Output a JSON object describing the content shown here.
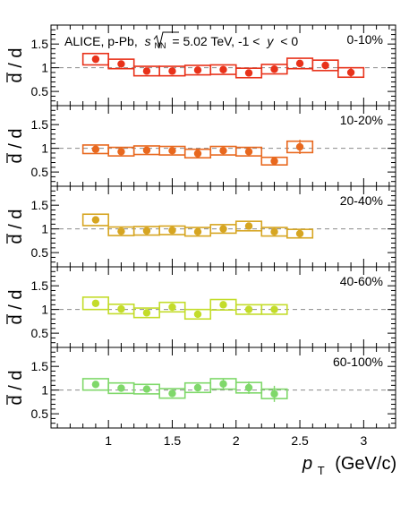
{
  "chart_data": {
    "type": "scatter",
    "title_label": {
      "experiment": "ALICE, p-Pb,",
      "sqrt": "s",
      "sub": "NN",
      "energy": "= 5.02 TeV, -1 <",
      "y_var": "y",
      "y_range": "< 0"
    },
    "xlabel": {
      "var": "p",
      "sub": "T",
      "unit": "(GeV/c)"
    },
    "ylabel": "d / d",
    "xlim": [
      0.55,
      3.25
    ],
    "ylim": [
      0.2,
      1.9
    ],
    "x_ticks": [
      1,
      1.5,
      2,
      2.5,
      3
    ],
    "x_tick_labels": [
      "1",
      "1.5",
      "2",
      "2.5",
      "3"
    ],
    "y_ticks": [
      0.5,
      1,
      1.5
    ],
    "y_tick_labels": [
      "0.5",
      "1",
      "1.5"
    ],
    "reference_line": 1,
    "panels": [
      {
        "label": "0-10%",
        "color": "#e8321a",
        "points": [
          {
            "x": 0.9,
            "y": 1.18,
            "stat": 0.04,
            "sys": 0.12,
            "hw": 0.1
          },
          {
            "x": 1.1,
            "y": 1.08,
            "stat": 0.04,
            "sys": 0.1,
            "hw": 0.1
          },
          {
            "x": 1.3,
            "y": 0.93,
            "stat": 0.04,
            "sys": 0.1,
            "hw": 0.1
          },
          {
            "x": 1.5,
            "y": 0.93,
            "stat": 0.04,
            "sys": 0.1,
            "hw": 0.1
          },
          {
            "x": 1.7,
            "y": 0.95,
            "stat": 0.04,
            "sys": 0.1,
            "hw": 0.1
          },
          {
            "x": 1.9,
            "y": 0.96,
            "stat": 0.04,
            "sys": 0.1,
            "hw": 0.1
          },
          {
            "x": 2.1,
            "y": 0.89,
            "stat": 0.04,
            "sys": 0.1,
            "hw": 0.1
          },
          {
            "x": 2.3,
            "y": 0.97,
            "stat": 0.05,
            "sys": 0.1,
            "hw": 0.1
          },
          {
            "x": 2.5,
            "y": 1.09,
            "stat": 0.06,
            "sys": 0.11,
            "hw": 0.1
          },
          {
            "x": 2.7,
            "y": 1.05,
            "stat": 0.08,
            "sys": 0.11,
            "hw": 0.1
          },
          {
            "x": 2.9,
            "y": 0.9,
            "stat": 0.1,
            "sys": 0.1,
            "hw": 0.1
          }
        ]
      },
      {
        "label": "10-20%",
        "color": "#e8681e",
        "points": [
          {
            "x": 0.9,
            "y": 0.98,
            "stat": 0.04,
            "sys": 0.09,
            "hw": 0.1
          },
          {
            "x": 1.1,
            "y": 0.93,
            "stat": 0.04,
            "sys": 0.09,
            "hw": 0.1
          },
          {
            "x": 1.3,
            "y": 0.96,
            "stat": 0.04,
            "sys": 0.09,
            "hw": 0.1
          },
          {
            "x": 1.5,
            "y": 0.95,
            "stat": 0.04,
            "sys": 0.09,
            "hw": 0.1
          },
          {
            "x": 1.7,
            "y": 0.89,
            "stat": 0.04,
            "sys": 0.09,
            "hw": 0.1
          },
          {
            "x": 1.9,
            "y": 0.95,
            "stat": 0.04,
            "sys": 0.09,
            "hw": 0.1
          },
          {
            "x": 2.1,
            "y": 0.93,
            "stat": 0.04,
            "sys": 0.09,
            "hw": 0.1
          },
          {
            "x": 2.3,
            "y": 0.73,
            "stat": 0.06,
            "sys": 0.08,
            "hw": 0.1
          },
          {
            "x": 2.5,
            "y": 1.03,
            "stat": 0.15,
            "sys": 0.12,
            "hw": 0.1
          }
        ]
      },
      {
        "label": "20-40%",
        "color": "#d6a521",
        "points": [
          {
            "x": 0.9,
            "y": 1.19,
            "stat": 0.04,
            "sys": 0.12,
            "hw": 0.1
          },
          {
            "x": 1.1,
            "y": 0.95,
            "stat": 0.04,
            "sys": 0.09,
            "hw": 0.1
          },
          {
            "x": 1.3,
            "y": 0.96,
            "stat": 0.04,
            "sys": 0.09,
            "hw": 0.1
          },
          {
            "x": 1.5,
            "y": 0.97,
            "stat": 0.04,
            "sys": 0.09,
            "hw": 0.1
          },
          {
            "x": 1.7,
            "y": 0.94,
            "stat": 0.04,
            "sys": 0.09,
            "hw": 0.1
          },
          {
            "x": 1.9,
            "y": 1.0,
            "stat": 0.04,
            "sys": 0.09,
            "hw": 0.1
          },
          {
            "x": 2.1,
            "y": 1.06,
            "stat": 0.04,
            "sys": 0.1,
            "hw": 0.1
          },
          {
            "x": 2.3,
            "y": 0.94,
            "stat": 0.05,
            "sys": 0.09,
            "hw": 0.1
          },
          {
            "x": 2.5,
            "y": 0.9,
            "stat": 0.06,
            "sys": 0.09,
            "hw": 0.1
          }
        ]
      },
      {
        "label": "40-60%",
        "color": "#c3dc2a",
        "points": [
          {
            "x": 0.9,
            "y": 1.13,
            "stat": 0.04,
            "sys": 0.13,
            "hw": 0.1
          },
          {
            "x": 1.1,
            "y": 1.01,
            "stat": 0.04,
            "sys": 0.1,
            "hw": 0.1
          },
          {
            "x": 1.3,
            "y": 0.93,
            "stat": 0.04,
            "sys": 0.1,
            "hw": 0.1
          },
          {
            "x": 1.5,
            "y": 1.05,
            "stat": 0.04,
            "sys": 0.1,
            "hw": 0.1
          },
          {
            "x": 1.7,
            "y": 0.9,
            "stat": 0.04,
            "sys": 0.1,
            "hw": 0.1
          },
          {
            "x": 1.9,
            "y": 1.1,
            "stat": 0.05,
            "sys": 0.11,
            "hw": 0.1
          },
          {
            "x": 2.1,
            "y": 1.0,
            "stat": 0.05,
            "sys": 0.1,
            "hw": 0.1
          },
          {
            "x": 2.3,
            "y": 1.0,
            "stat": 0.06,
            "sys": 0.1,
            "hw": 0.1
          }
        ]
      },
      {
        "label": "60-100%",
        "color": "#7fd86a",
        "points": [
          {
            "x": 0.9,
            "y": 1.12,
            "stat": 0.05,
            "sys": 0.12,
            "hw": 0.1
          },
          {
            "x": 1.1,
            "y": 1.04,
            "stat": 0.05,
            "sys": 0.11,
            "hw": 0.1
          },
          {
            "x": 1.3,
            "y": 1.02,
            "stat": 0.05,
            "sys": 0.1,
            "hw": 0.1
          },
          {
            "x": 1.5,
            "y": 0.93,
            "stat": 0.05,
            "sys": 0.1,
            "hw": 0.1
          },
          {
            "x": 1.7,
            "y": 1.05,
            "stat": 0.05,
            "sys": 0.1,
            "hw": 0.1
          },
          {
            "x": 1.9,
            "y": 1.13,
            "stat": 0.1,
            "sys": 0.11,
            "hw": 0.1
          },
          {
            "x": 2.1,
            "y": 1.05,
            "stat": 0.13,
            "sys": 0.11,
            "hw": 0.1
          },
          {
            "x": 2.3,
            "y": 0.92,
            "stat": 0.17,
            "sys": 0.1,
            "hw": 0.1
          }
        ]
      }
    ]
  }
}
